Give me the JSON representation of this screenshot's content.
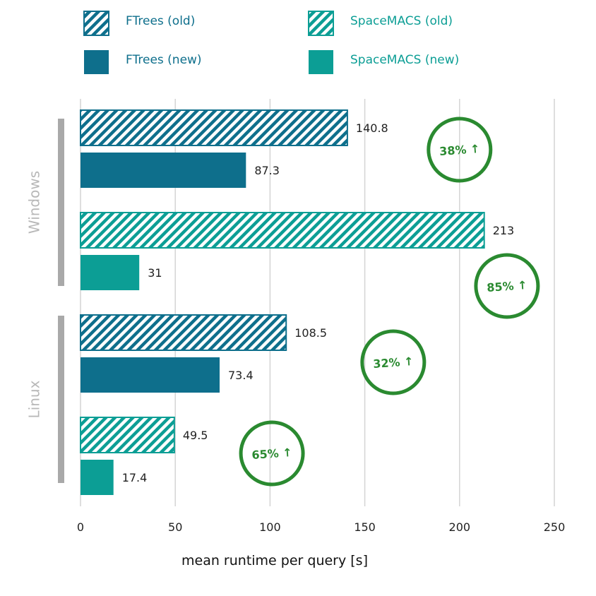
{
  "chart_data": {
    "type": "bar",
    "orientation": "horizontal",
    "xlabel": "mean runtime per query [s]",
    "xlim": [
      0,
      250
    ],
    "xticks": [
      0,
      50,
      100,
      150,
      200,
      250
    ],
    "grid": "vertical",
    "legend": {
      "placement": "top",
      "entries": [
        {
          "name": "FTrees (old)",
          "color": "#0e6f8c",
          "pattern": "hatched"
        },
        {
          "name": "SpaceMACS (old)",
          "color": "#0c9e95",
          "pattern": "hatched"
        },
        {
          "name": "FTrees (new)",
          "color": "#0e6f8c",
          "pattern": "solid"
        },
        {
          "name": "SpaceMACS (new)",
          "color": "#0c9e95",
          "pattern": "solid"
        }
      ]
    },
    "groups": [
      {
        "label": "Windows",
        "bars": [
          {
            "series": "FTrees (old)",
            "value": 140.8,
            "label": "140.8"
          },
          {
            "series": "FTrees (new)",
            "value": 87.3,
            "label": "87.3"
          },
          {
            "series": "SpaceMACS (old)",
            "value": 213,
            "label": "213"
          },
          {
            "series": "SpaceMACS (new)",
            "value": 31,
            "label": "31"
          }
        ]
      },
      {
        "label": "Linux",
        "bars": [
          {
            "series": "FTrees (old)",
            "value": 108.5,
            "label": "108.5"
          },
          {
            "series": "FTrees (new)",
            "value": 73.4,
            "label": "73.4"
          },
          {
            "series": "SpaceMACS (old)",
            "value": 49.5,
            "label": "49.5"
          },
          {
            "series": "SpaceMACS (new)",
            "value": 17.4,
            "label": "17.4"
          }
        ]
      }
    ],
    "annotations": [
      {
        "text": "38%",
        "group": "Windows",
        "pair": "FTrees",
        "x": 200
      },
      {
        "text": "85%",
        "group": "Windows",
        "pair": "SpaceMACS",
        "x": 225
      },
      {
        "text": "32%",
        "group": "Linux",
        "pair": "FTrees",
        "x": 165
      },
      {
        "text": "65%",
        "group": "Linux",
        "pair": "SpaceMACS",
        "x": 101
      }
    ],
    "annotation_arrow": "↑",
    "annotation_color": "#2a8a30"
  }
}
